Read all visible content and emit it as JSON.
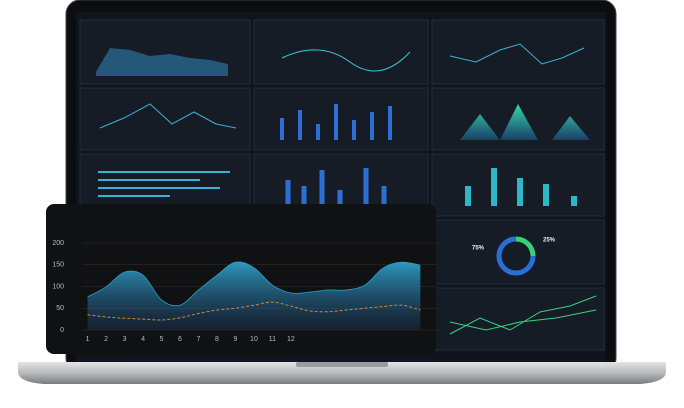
{
  "chart_data": [
    {
      "type": "area",
      "x": [
        1,
        2,
        3,
        4,
        5,
        6,
        7,
        8,
        9,
        10,
        11,
        12,
        13,
        14,
        15,
        16,
        17,
        18,
        19
      ],
      "xlim": [
        0.7,
        19.9
      ],
      "xticks": [
        1,
        2,
        3,
        4,
        5,
        6,
        7,
        8,
        9,
        10,
        11,
        12
      ],
      "ylim": [
        0,
        200
      ],
      "yticks": [
        0,
        50,
        100,
        150,
        200
      ],
      "grid": true,
      "series": [
        {
          "color": "#2f9fc8",
          "values": [
            76,
            99,
            133,
            126,
            69,
            57,
            92,
            126,
            156,
            143,
            103,
            85,
            87,
            92,
            92,
            103,
            143,
            156,
            149
          ]
        },
        {
          "color": "#c98a3c",
          "dashed": true,
          "values": [
            35,
            30,
            27,
            25,
            23,
            28,
            38,
            46,
            50,
            57,
            64,
            55,
            44,
            42,
            46,
            50,
            54,
            57,
            46
          ]
        }
      ]
    },
    {
      "type": "pie",
      "values": [
        75,
        25
      ],
      "value_labels": [
        "75%",
        "25%"
      ],
      "colors": [
        "#2a6fd6",
        "#3ad07a"
      ]
    }
  ]
}
